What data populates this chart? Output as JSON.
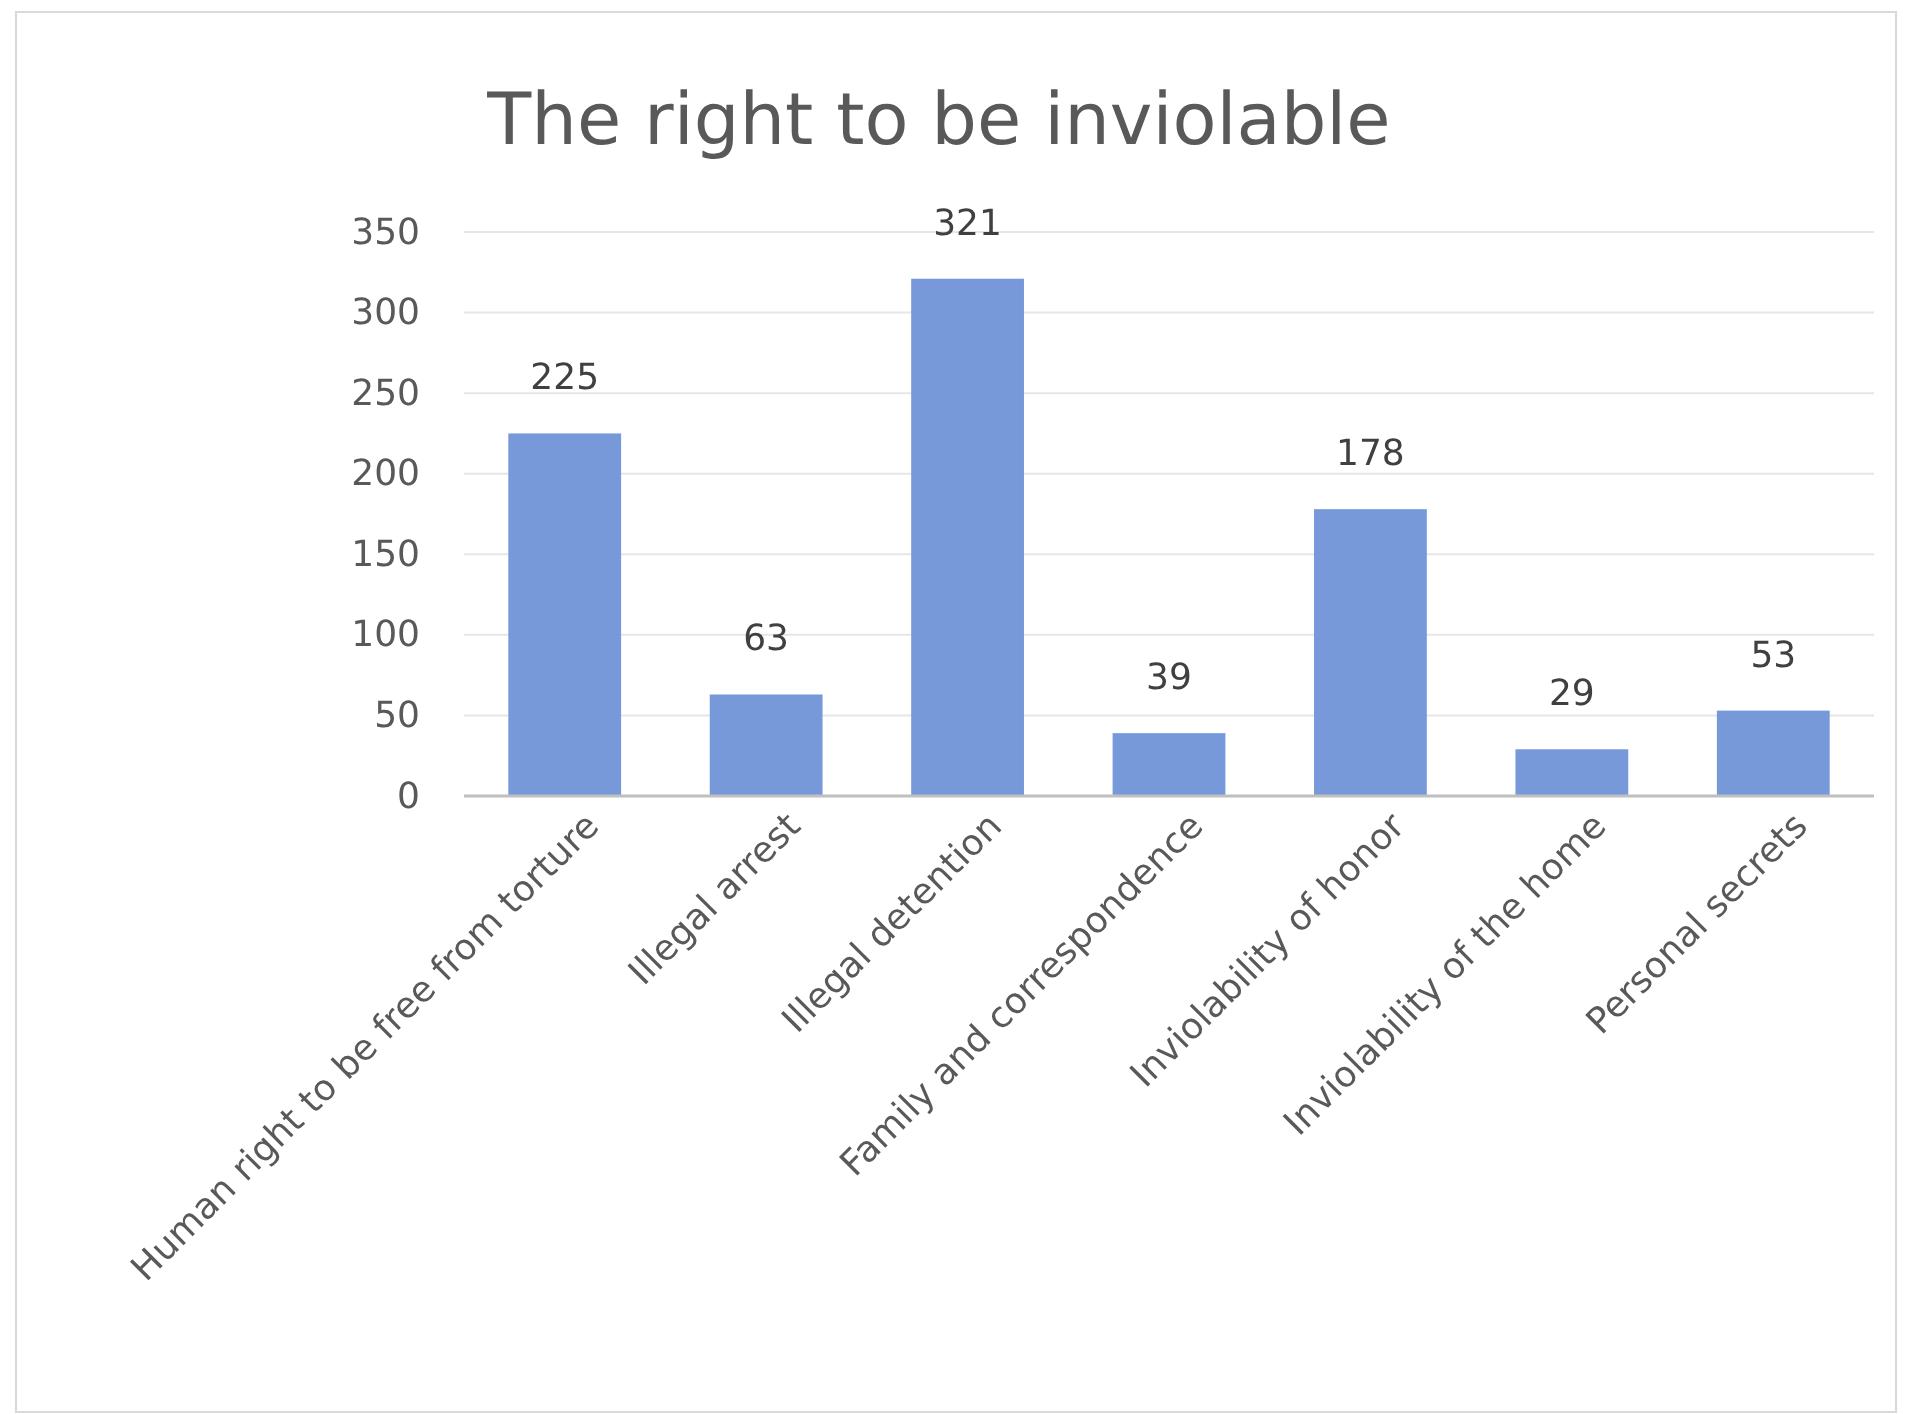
{
  "chart_data": {
    "type": "bar",
    "title": "The right to be inviolable",
    "categories": [
      "Human right to be free from torture",
      "Illegal arrest",
      "Illegal detention",
      "Family and correspondence",
      "Inviolability of honor",
      "Inviolability of the home",
      "Personal secrets"
    ],
    "values": [
      225,
      63,
      321,
      39,
      178,
      29,
      53
    ],
    "color": "#7799d9",
    "ylim": [
      0,
      350
    ],
    "yticks": [
      0,
      50,
      100,
      150,
      200,
      250,
      300,
      350
    ],
    "grid": "y",
    "data_labels": true
  }
}
